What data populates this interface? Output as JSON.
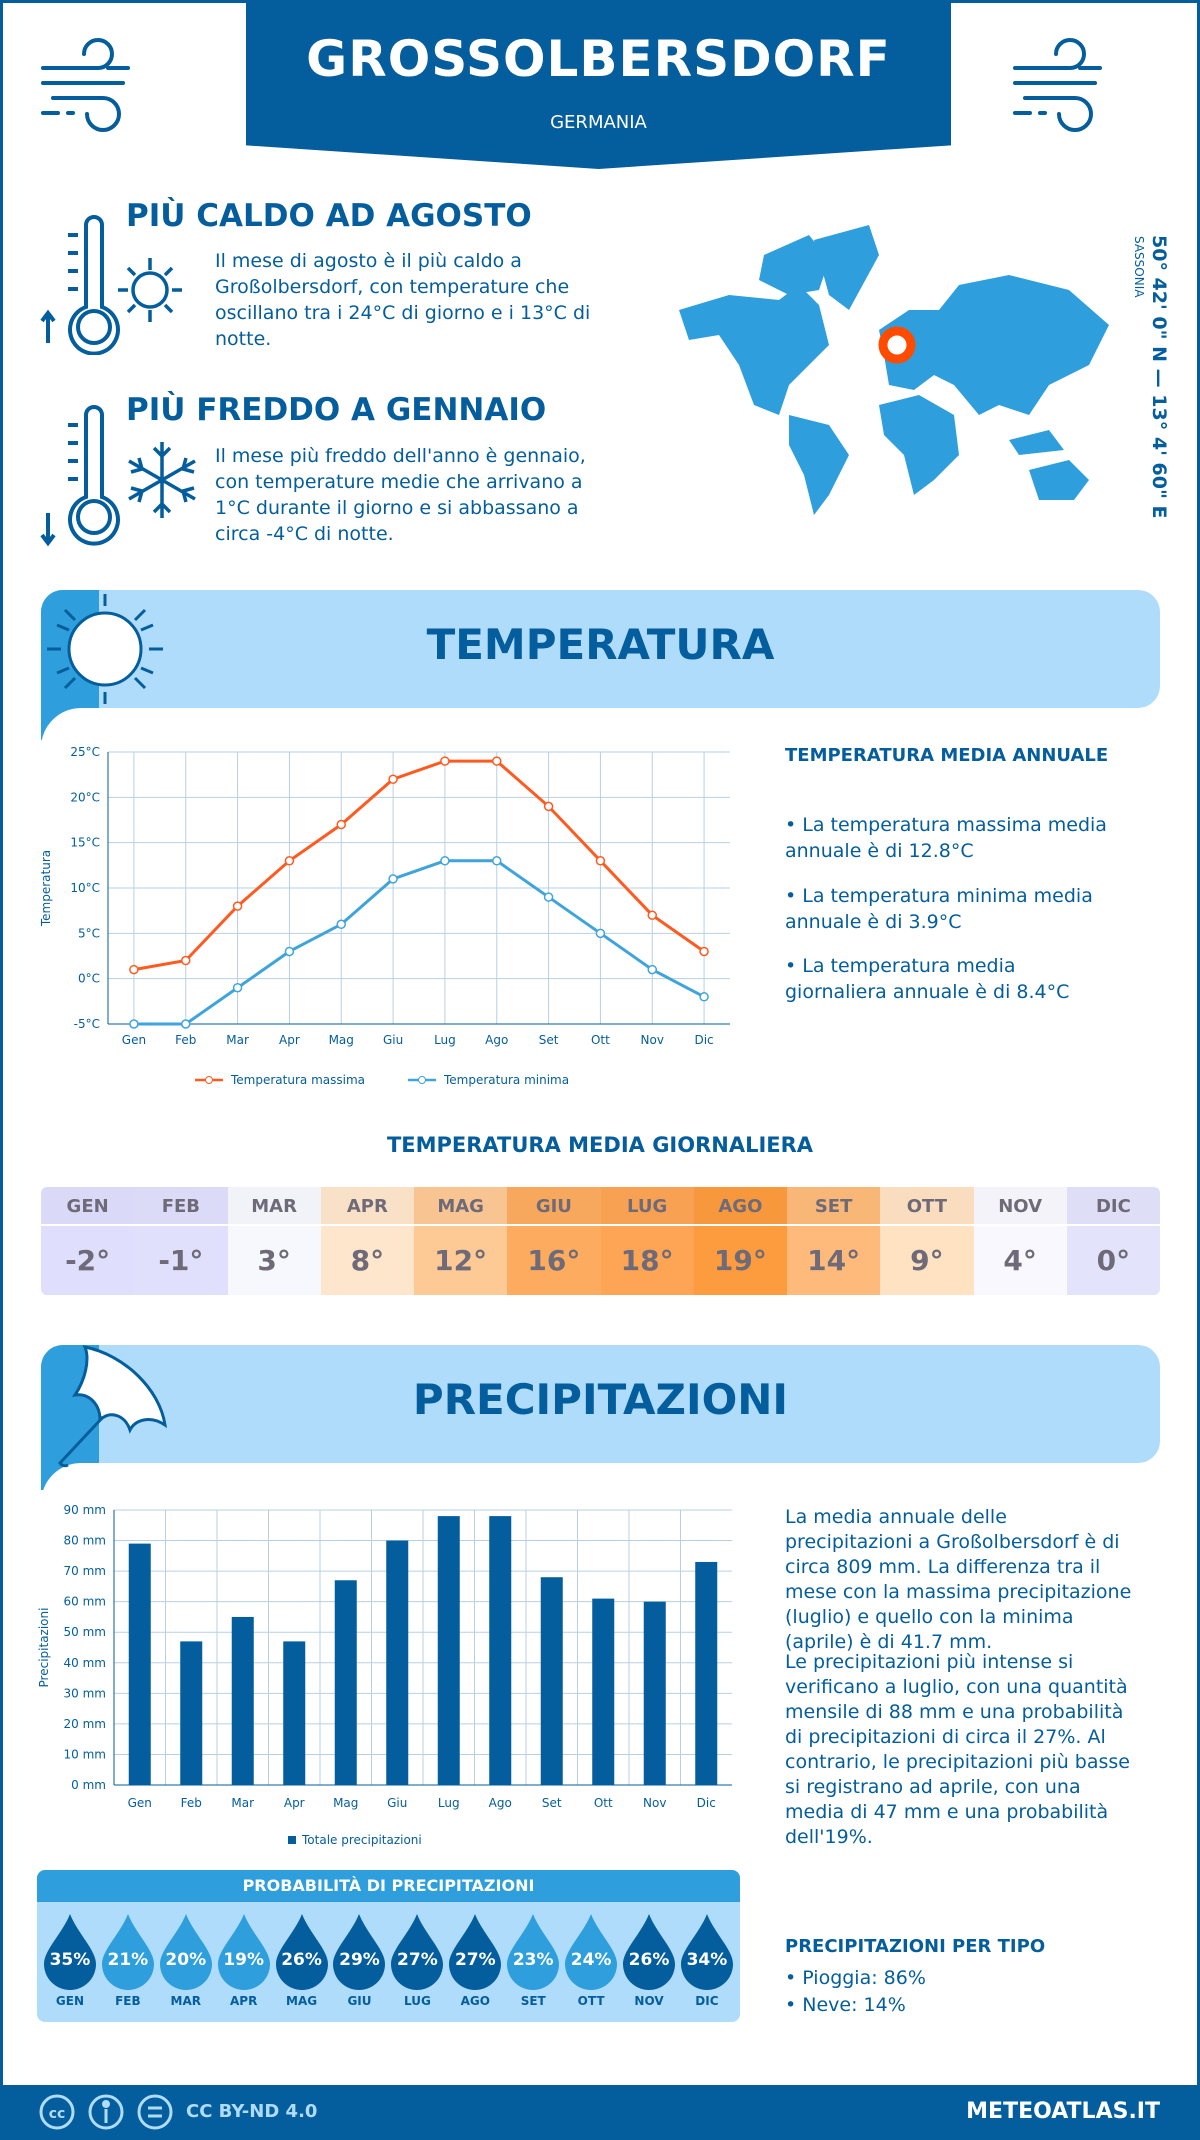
{
  "header": {
    "title": "GROSSOLBERSDORF",
    "country": "GERMANIA"
  },
  "hot": {
    "title": "PIÙ CALDO AD AGOSTO",
    "text": "Il mese di agosto è il più caldo a Großolbersdorf, con temperature che oscillano tra i 24°C di giorno e i 13°C di notte."
  },
  "cold": {
    "title": "PIÙ FREDDO A GENNAIO",
    "text": "Il mese più freddo dell'anno è gennaio, con temperature medie che arrivano a 1°C durante il giorno e si abbassano a circa -4°C di notte."
  },
  "location": {
    "coords": "50° 42' 0\" N — 13° 4' 60\" E",
    "region": "SASSONIA",
    "marker_color": "#ff4b00"
  },
  "temp_section": {
    "title": "TEMPERATURA"
  },
  "temp_summary": {
    "title": "TEMPERATURA MEDIA ANNUALE",
    "items": [
      "• La temperatura massima media annuale è di 12.8°C",
      "• La temperatura minima media annuale è di 3.9°C",
      "• La temperatura media giornaliera annuale è di 8.4°C"
    ]
  },
  "chart_data": [
    {
      "type": "line",
      "categories": [
        "Gen",
        "Feb",
        "Mar",
        "Apr",
        "Mag",
        "Giu",
        "Lug",
        "Ago",
        "Set",
        "Ott",
        "Nov",
        "Dic"
      ],
      "ylabel": "Temperatura",
      "ylim": [
        -5,
        25
      ],
      "yticks": [
        "-5°C",
        "0°C",
        "5°C",
        "10°C",
        "15°C",
        "20°C",
        "25°C"
      ],
      "grid": true,
      "legend": "bottom",
      "series": [
        {
          "name": "Temperatura massima",
          "color": "#ff5a1f",
          "values": [
            1,
            2,
            8,
            13,
            17,
            22,
            24,
            24,
            19,
            13,
            7,
            3
          ]
        },
        {
          "name": "Temperatura minima",
          "color": "#3fa4dc",
          "values": [
            -5,
            -5,
            -1,
            3,
            6,
            11,
            13,
            13,
            9,
            5,
            1,
            -2
          ]
        }
      ]
    },
    {
      "type": "bar",
      "categories": [
        "Gen",
        "Feb",
        "Mar",
        "Apr",
        "Mag",
        "Giu",
        "Lug",
        "Ago",
        "Set",
        "Ott",
        "Nov",
        "Dic"
      ],
      "ylabel": "Precipitazioni",
      "ylim": [
        0,
        90
      ],
      "yticks": [
        "0 mm",
        "10 mm",
        "20 mm",
        "30 mm",
        "40 mm",
        "50 mm",
        "60 mm",
        "70 mm",
        "80 mm",
        "90 mm"
      ],
      "grid": true,
      "legend": "bottom",
      "series": [
        {
          "name": "Totale precipitazioni",
          "color": "#045d9c",
          "values": [
            79,
            47,
            55,
            47,
            67,
            80,
            88,
            88,
            68,
            61,
            60,
            73
          ]
        }
      ]
    }
  ],
  "daily_table": {
    "title": "TEMPERATURA MEDIA GIORNALIERA",
    "months": [
      "GEN",
      "FEB",
      "MAR",
      "APR",
      "MAG",
      "GIU",
      "LUG",
      "AGO",
      "SET",
      "OTT",
      "NOV",
      "DIC"
    ],
    "values": [
      "-2°",
      "-1°",
      "3°",
      "8°",
      "12°",
      "16°",
      "18°",
      "19°",
      "14°",
      "9°",
      "4°",
      "0°"
    ],
    "colors": [
      "#dfdffd",
      "#e0e0fc",
      "#f7f8fe",
      "#fee6cc",
      "#fdc995",
      "#fdac5f",
      "#fda555",
      "#fd9c3e",
      "#fdba7a",
      "#ffe2c2",
      "#f8f8fe",
      "#e3e3fb"
    ]
  },
  "precip_section": {
    "title": "PRECIPITAZIONI"
  },
  "precip_text": {
    "p1": "La media annuale delle precipitazioni a Großolbersdorf è di circa 809 mm. La differenza tra il mese con la massima precipitazione (luglio) e quello con la minima (aprile) è di 41.7 mm.",
    "p2": "Le precipitazioni più intense si verificano a luglio, con una quantità mensile di 88 mm e una probabilità di precipitazioni di circa il 27%. Al contrario, le precipitazioni più basse si registrano ad aprile, con una media di 47 mm e una probabilità dell'19%."
  },
  "probability": {
    "title": "PROBABILITÀ DI PRECIPITAZIONI",
    "months": [
      "GEN",
      "FEB",
      "MAR",
      "APR",
      "MAG",
      "GIU",
      "LUG",
      "AGO",
      "SET",
      "OTT",
      "NOV",
      "DIC"
    ],
    "values": [
      "35%",
      "21%",
      "20%",
      "19%",
      "26%",
      "29%",
      "27%",
      "27%",
      "23%",
      "24%",
      "26%",
      "34%"
    ]
  },
  "precip_type": {
    "title": "PRECIPITAZIONI PER TIPO",
    "items": [
      "• Pioggia: 86%",
      "• Neve: 14%"
    ]
  },
  "footer": {
    "license": "CC BY-ND 4.0",
    "site": "METEOATLAS.IT"
  }
}
